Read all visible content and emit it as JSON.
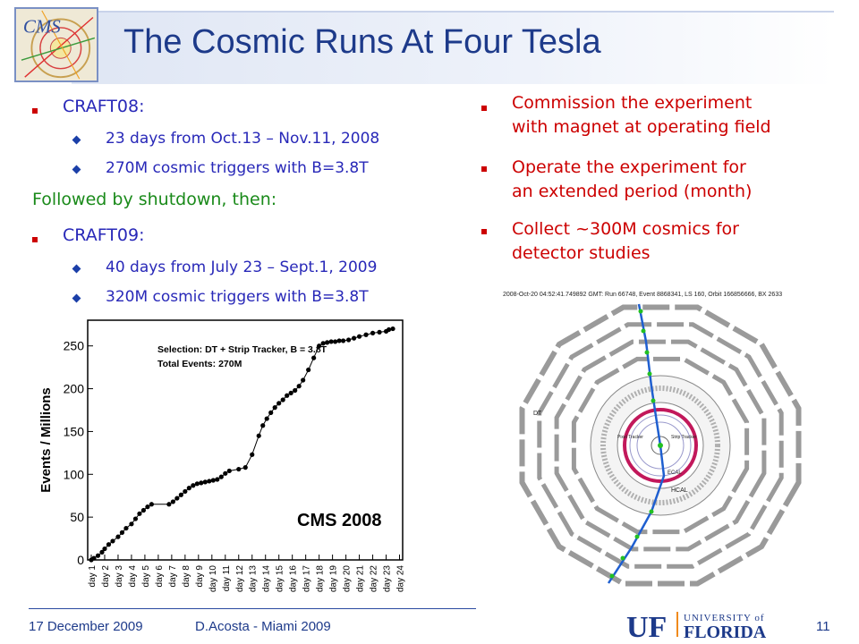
{
  "title": "The Cosmic Runs At Four Tesla",
  "left": {
    "craft08": "CRAFT08:",
    "craft08_items": [
      "23 days from Oct.13 – Nov.11, 2008",
      "270M cosmic triggers with B=3.8T"
    ],
    "followed": "Followed by shutdown, then:",
    "craft09": "CRAFT09:",
    "craft09_items": [
      "40 days from July 23 – Sept.1, 2009",
      "320M cosmic triggers with B=3.8T"
    ]
  },
  "right": {
    "items": [
      [
        "Commission the experiment",
        "with magnet at operating field"
      ],
      [
        "Operate the experiment for",
        "an extended period (month)"
      ],
      [
        "Collect ~300M cosmics for",
        "detector studies"
      ]
    ]
  },
  "event_display": {
    "header": "2008-Oct-20 04:52:41.749892 GMT: Run 66748, Event 8868341, LS 160, Orbit 166856666, BX 2633",
    "labels": {
      "dt": "DT",
      "tracker": "Pixel Tracker",
      "strip": "Strip Tracker",
      "ecal": "ECAL",
      "hcal": "HCAL"
    },
    "colors": {
      "ring": "#9a9a9a",
      "track": "#1f5fd0",
      "hit": "#22c022",
      "ecal": "#c2185b"
    }
  },
  "chart_data": {
    "type": "scatter",
    "ylabel": "Events / Millions",
    "ylim": [
      0,
      280
    ],
    "yticks": [
      0,
      50,
      100,
      150,
      200,
      250
    ],
    "categories": [
      "day 1",
      "day 2",
      "day 3",
      "day 4",
      "day 5",
      "day 6",
      "day 7",
      "day 8",
      "day 9",
      "day 10",
      "day 11",
      "day 12",
      "day 13",
      "day 14",
      "day 15",
      "day 16",
      "day 17",
      "day 18",
      "day 19",
      "day 20",
      "day 21",
      "day 22",
      "day 23",
      "day 24"
    ],
    "annotation_lines": [
      "Selection: DT + Strip Tracker, B = 3.8T",
      "Total Events: 270M"
    ],
    "watermark": "CMS 2008",
    "x": [
      0.0,
      0.2,
      0.5,
      0.8,
      1.0,
      1.3,
      1.6,
      2.0,
      2.3,
      2.6,
      3.0,
      3.3,
      3.6,
      3.9,
      4.2,
      4.5,
      5.8,
      6.1,
      6.4,
      6.7,
      7.0,
      7.3,
      7.6,
      7.9,
      8.2,
      8.5,
      8.8,
      9.1,
      9.4,
      9.7,
      10.0,
      10.3,
      11.0,
      11.5,
      12.0,
      12.5,
      12.8,
      13.1,
      13.4,
      13.7,
      14.0,
      14.3,
      14.6,
      14.9,
      15.2,
      15.5,
      15.8,
      16.2,
      16.6,
      17.0,
      17.3,
      17.6,
      17.9,
      18.2,
      18.5,
      18.8,
      19.2,
      19.6,
      20.0,
      20.5,
      21.0,
      21.5,
      22.0,
      22.2,
      22.5
    ],
    "y": [
      0,
      2,
      5,
      9,
      13,
      18,
      22,
      27,
      32,
      37,
      42,
      48,
      54,
      58,
      62,
      65,
      65,
      68,
      72,
      76,
      80,
      84,
      87,
      89,
      90,
      91,
      92,
      93,
      94,
      97,
      101,
      104,
      106,
      108,
      123,
      145,
      157,
      165,
      172,
      178,
      183,
      187,
      192,
      195,
      198,
      203,
      210,
      222,
      236,
      250,
      253,
      254,
      255,
      255,
      256,
      256,
      257,
      259,
      261,
      263,
      265,
      266,
      267,
      269,
      270
    ]
  }
}
